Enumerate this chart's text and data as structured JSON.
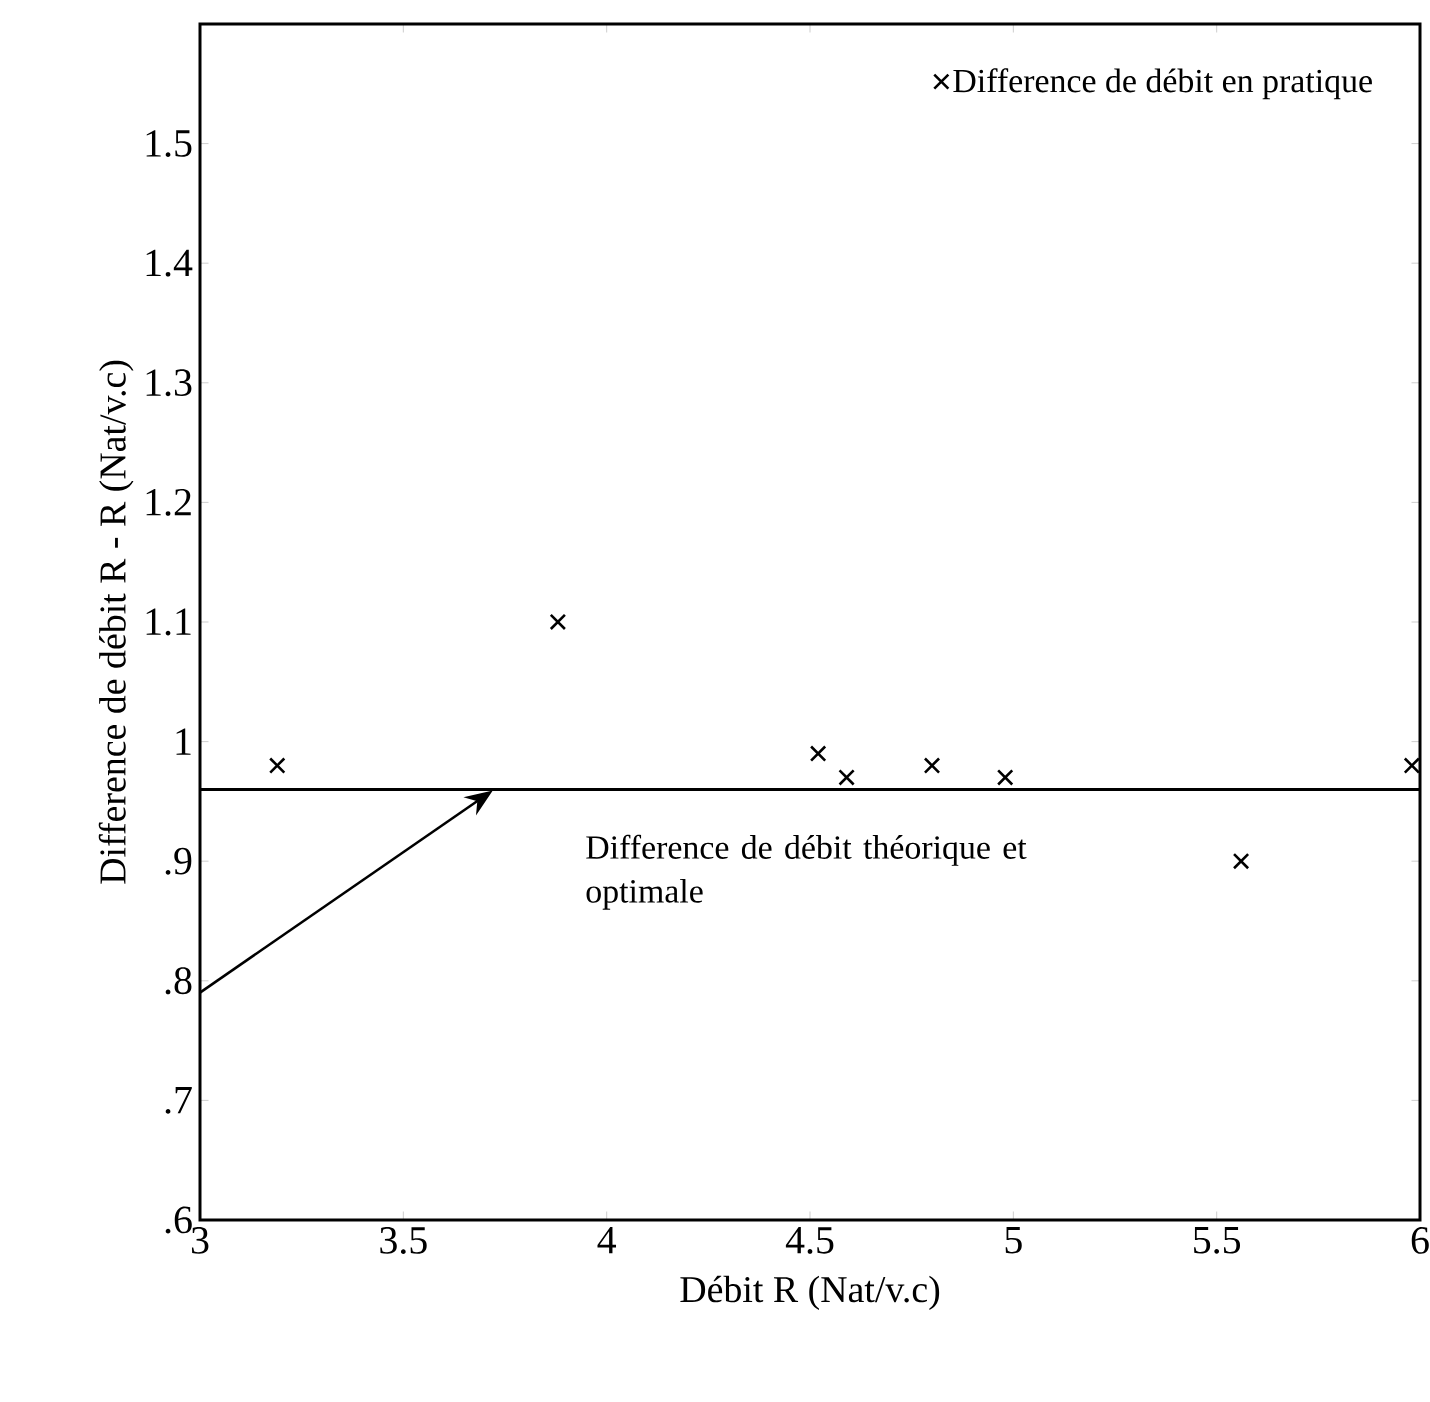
{
  "chart_data": {
    "type": "scatter",
    "xlabel": "Débit R (Nat/v.c)",
    "ylabel": "Difference de débit R - R (Nat/v.c)",
    "x": [
      3.19,
      3.88,
      4.52,
      4.59,
      4.8,
      4.98,
      5.56,
      5.98
    ],
    "series": [
      {
        "name": "Difference de débit en pratique",
        "color": "#000000",
        "values": [
          0.98,
          1.1,
          0.99,
          0.97,
          0.98,
          0.97,
          0.9,
          0.98
        ]
      }
    ],
    "marker": "cross",
    "legend": "top right",
    "xlim": [
      3,
      6
    ],
    "ylim": [
      0.6,
      1.6
    ],
    "xticks": [
      3,
      3.5,
      4,
      4.5,
      5,
      5.5,
      6
    ],
    "yticks": [
      {
        "value": 0.6,
        "label": ".6"
      },
      {
        "value": 0.7,
        "label": ".7"
      },
      {
        "value": 0.8,
        "label": ".8"
      },
      {
        "value": 0.9,
        "label": ".9"
      },
      1,
      1.1,
      1.2,
      1.3,
      1.4,
      1.5
    ],
    "ref_lines": [
      {
        "axis": "y",
        "value": 0.96,
        "label": "Difference de débit théorique et optimale",
        "color": "#000000"
      }
    ]
  }
}
